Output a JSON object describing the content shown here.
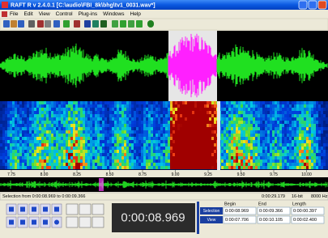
{
  "window": {
    "title": "RAFT R v 2.4.0.1  [C:\\audio\\FBI_8k\\bhg\\tv1_0031.wav*]",
    "menu": [
      "File",
      "Edit",
      "View",
      "Control",
      "Plug-ins",
      "Windows",
      "Help"
    ]
  },
  "ruler": {
    "labels": [
      "7.75",
      "8.00",
      "8.25",
      "8.50",
      "8.75",
      "9.00",
      "9.25",
      "9.50",
      "9.75",
      "10.00"
    ]
  },
  "status": {
    "selection": "Selection from 0:00:08.969 to 0:00:09.366",
    "duration": "0:00:29.179",
    "bits": "16-bit",
    "rate": "8000 Hz"
  },
  "transport": {
    "time": "0:00:08.969",
    "table": {
      "headers": [
        "Begin",
        "End",
        "Length"
      ],
      "rows": [
        {
          "label": "Selection",
          "cells": [
            "0:00:08.969",
            "0:00:09.366",
            "0:00:00.397"
          ]
        },
        {
          "label": "View",
          "cells": [
            "0:00:07.706",
            "0:00:10.105",
            "0:00:02.400"
          ]
        }
      ]
    }
  }
}
